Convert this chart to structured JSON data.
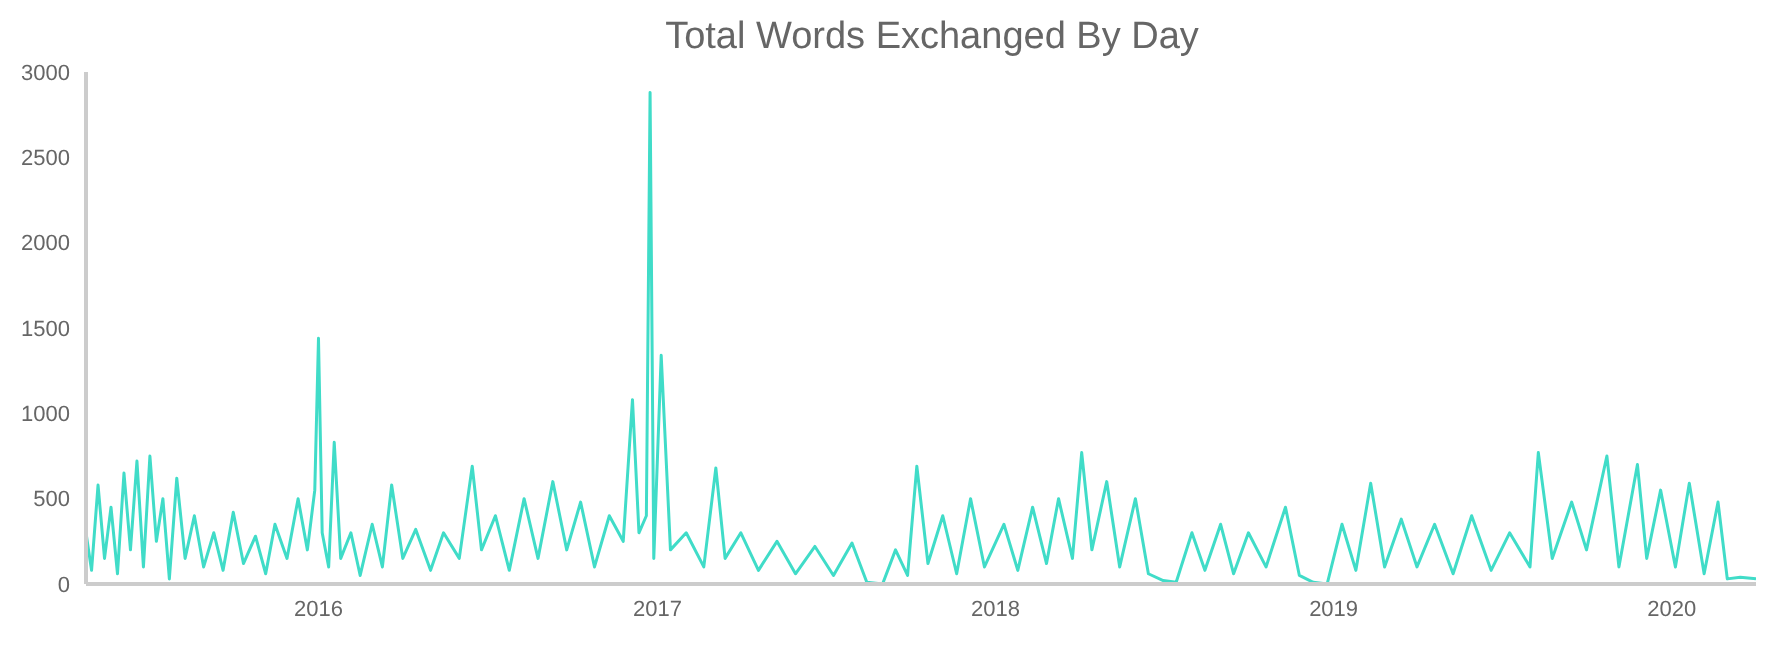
{
  "chart_data": {
    "type": "line",
    "title": "Total Words Exchanged By Day",
    "x": [
      "2015-04-25",
      "2015-05-01",
      "2015-05-08",
      "2015-05-15",
      "2015-05-22",
      "2015-05-29",
      "2015-06-05",
      "2015-06-12",
      "2015-06-19",
      "2015-06-26",
      "2015-07-03",
      "2015-07-10",
      "2015-07-17",
      "2015-07-24",
      "2015-08-01",
      "2015-08-10",
      "2015-08-20",
      "2015-08-30",
      "2015-09-10",
      "2015-09-20",
      "2015-10-01",
      "2015-10-12",
      "2015-10-25",
      "2015-11-05",
      "2015-11-15",
      "2015-11-28",
      "2015-12-10",
      "2015-12-20",
      "2015-12-28",
      "2016-01-01",
      "2016-01-05",
      "2016-01-12",
      "2016-01-18",
      "2016-01-25",
      "2016-02-05",
      "2016-02-15",
      "2016-02-28",
      "2016-03-10",
      "2016-03-20",
      "2016-04-01",
      "2016-04-15",
      "2016-05-01",
      "2016-05-15",
      "2016-06-01",
      "2016-06-15",
      "2016-06-25",
      "2016-07-10",
      "2016-07-25",
      "2016-08-10",
      "2016-08-25",
      "2016-09-10",
      "2016-09-25",
      "2016-10-10",
      "2016-10-25",
      "2016-11-10",
      "2016-11-25",
      "2016-12-05",
      "2016-12-12",
      "2016-12-20",
      "2016-12-24",
      "2016-12-28",
      "2017-01-05",
      "2017-01-15",
      "2017-02-01",
      "2017-02-20",
      "2017-03-05",
      "2017-03-15",
      "2017-04-01",
      "2017-04-20",
      "2017-05-10",
      "2017-05-30",
      "2017-06-20",
      "2017-07-10",
      "2017-07-30",
      "2017-08-15",
      "2017-09-01",
      "2017-09-15",
      "2017-09-28",
      "2017-10-08",
      "2017-10-20",
      "2017-11-05",
      "2017-11-20",
      "2017-12-05",
      "2017-12-20",
      "2018-01-10",
      "2018-01-25",
      "2018-02-10",
      "2018-02-25",
      "2018-03-10",
      "2018-03-25",
      "2018-04-04",
      "2018-04-15",
      "2018-05-01",
      "2018-05-15",
      "2018-06-01",
      "2018-06-15",
      "2018-07-01",
      "2018-07-15",
      "2018-08-01",
      "2018-08-15",
      "2018-09-01",
      "2018-09-15",
      "2018-10-01",
      "2018-10-20",
      "2018-11-10",
      "2018-11-25",
      "2018-12-10",
      "2018-12-25",
      "2019-01-10",
      "2019-01-25",
      "2019-02-10",
      "2019-02-25",
      "2019-03-15",
      "2019-04-01",
      "2019-04-20",
      "2019-05-10",
      "2019-05-30",
      "2019-06-20",
      "2019-07-10",
      "2019-08-01",
      "2019-08-10",
      "2019-08-25",
      "2019-09-15",
      "2019-10-01",
      "2019-10-23",
      "2019-11-05",
      "2019-11-25",
      "2019-12-05",
      "2019-12-20",
      "2020-01-05",
      "2020-01-20",
      "2020-02-05",
      "2020-02-20",
      "2020-03-01",
      "2020-03-15",
      "2020-04-01"
    ],
    "series": [
      {
        "color": "#40dcc8",
        "values": [
          300,
          80,
          580,
          150,
          450,
          60,
          650,
          200,
          720,
          100,
          750,
          250,
          500,
          30,
          620,
          150,
          400,
          100,
          300,
          80,
          420,
          120,
          280,
          60,
          350,
          150,
          500,
          200,
          550,
          1440,
          300,
          100,
          830,
          150,
          300,
          50,
          350,
          100,
          580,
          150,
          320,
          80,
          300,
          150,
          690,
          200,
          400,
          80,
          500,
          150,
          600,
          200,
          480,
          100,
          400,
          250,
          1080,
          300,
          400,
          2880,
          150,
          1340,
          200,
          300,
          100,
          680,
          150,
          300,
          80,
          250,
          60,
          220,
          50,
          240,
          10,
          0,
          200,
          50,
          690,
          120,
          400,
          60,
          500,
          100,
          350,
          80,
          450,
          120,
          500,
          150,
          770,
          200,
          600,
          100,
          500,
          60,
          20,
          10,
          300,
          80,
          350,
          60,
          300,
          100,
          450,
          50,
          10,
          0,
          350,
          80,
          590,
          100,
          380,
          100,
          350,
          60,
          400,
          80,
          300,
          100,
          770,
          150,
          480,
          200,
          750,
          100,
          700,
          150,
          550,
          100,
          590,
          60,
          480,
          30,
          40,
          30
        ]
      }
    ],
    "xlim": [
      "2015-04-25",
      "2020-04-01"
    ],
    "xticks": [
      "2016",
      "2017",
      "2018",
      "2019",
      "2020"
    ],
    "ylim": [
      0,
      3000
    ],
    "yticks": [
      0,
      500,
      1000,
      1500,
      2000,
      2500,
      3000
    ],
    "grid": false,
    "legend": false,
    "marker": "none",
    "line_style": "solid"
  }
}
